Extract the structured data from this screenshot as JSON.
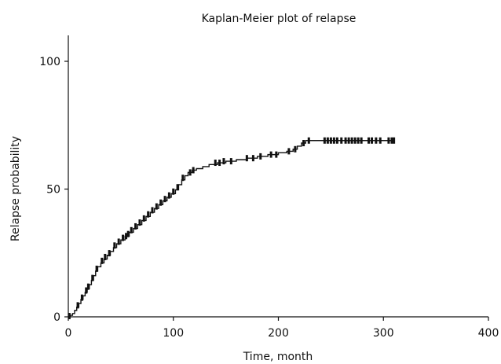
{
  "chart_data": {
    "type": "line",
    "title": "Kaplan-Meier plot of relapse",
    "xlabel": "Time, month",
    "ylabel": "Relapse probability",
    "xlim": [
      0,
      400
    ],
    "ylim": [
      0,
      110
    ],
    "x_ticks": [
      {
        "value": 0,
        "label": "0"
      },
      {
        "value": 100,
        "label": "100"
      },
      {
        "value": 200,
        "label": "200"
      },
      {
        "value": 300,
        "label": "300"
      },
      {
        "value": 400,
        "label": "400"
      }
    ],
    "y_ticks": [
      {
        "value": 0,
        "label": "0"
      },
      {
        "value": 50,
        "label": "50"
      },
      {
        "value": 100,
        "label": "100"
      }
    ],
    "grid": false,
    "legend": "none",
    "line_color": "#111111",
    "series": [
      {
        "step_curve": [
          [
            0,
            0
          ],
          [
            2,
            0.6
          ],
          [
            4,
            1.3
          ],
          [
            6,
            2.5
          ],
          [
            8,
            3.8
          ],
          [
            10,
            5.2
          ],
          [
            12,
            6.8
          ],
          [
            14,
            8.2
          ],
          [
            16,
            9.6
          ],
          [
            18,
            11.0
          ],
          [
            20,
            12.6
          ],
          [
            22,
            14.3
          ],
          [
            24,
            16.1
          ],
          [
            26,
            17.9
          ],
          [
            28,
            19.6
          ],
          [
            31,
            21.1
          ],
          [
            34,
            22.6
          ],
          [
            37,
            24.1
          ],
          [
            40,
            25.6
          ],
          [
            43,
            27.1
          ],
          [
            46,
            28.6
          ],
          [
            50,
            30.1
          ],
          [
            54,
            31.6
          ],
          [
            58,
            33.1
          ],
          [
            62,
            34.6
          ],
          [
            66,
            36.1
          ],
          [
            70,
            37.7
          ],
          [
            74,
            39.3
          ],
          [
            78,
            40.9
          ],
          [
            82,
            42.4
          ],
          [
            86,
            43.9
          ],
          [
            90,
            45.4
          ],
          [
            94,
            46.8
          ],
          [
            98,
            48.2
          ],
          [
            102,
            49.7
          ],
          [
            105,
            51.7
          ],
          [
            108,
            53.6
          ],
          [
            111,
            55.2
          ],
          [
            114,
            56.5
          ],
          [
            118,
            57.4
          ],
          [
            122,
            58.0
          ],
          [
            128,
            58.8
          ],
          [
            134,
            59.6
          ],
          [
            142,
            60.3
          ],
          [
            150,
            60.9
          ],
          [
            160,
            61.5
          ],
          [
            170,
            62.1
          ],
          [
            180,
            62.8
          ],
          [
            190,
            63.5
          ],
          [
            200,
            64.2
          ],
          [
            208,
            64.8
          ],
          [
            214,
            65.6
          ],
          [
            218,
            66.8
          ],
          [
            222,
            68.0
          ],
          [
            226,
            69.0
          ],
          [
            310,
            69.0
          ]
        ],
        "censor_marks": [
          [
            1,
            0.3
          ],
          [
            9,
            4.5
          ],
          [
            13,
            7.5
          ],
          [
            17,
            10.3
          ],
          [
            19,
            11.8
          ],
          [
            23,
            15.2
          ],
          [
            27,
            18.8
          ],
          [
            32,
            21.9
          ],
          [
            35,
            23.4
          ],
          [
            39,
            24.9
          ],
          [
            44,
            27.9
          ],
          [
            48,
            29.4
          ],
          [
            52,
            30.9
          ],
          [
            55,
            31.6
          ],
          [
            57,
            32.4
          ],
          [
            60,
            33.9
          ],
          [
            64,
            35.4
          ],
          [
            68,
            36.9
          ],
          [
            72,
            38.5
          ],
          [
            76,
            40.1
          ],
          [
            80,
            41.7
          ],
          [
            84,
            43.2
          ],
          [
            88,
            44.7
          ],
          [
            92,
            46.1
          ],
          [
            96,
            47.5
          ],
          [
            100,
            49.0
          ],
          [
            104,
            50.7
          ],
          [
            109,
            54.4
          ],
          [
            116,
            56.5
          ],
          [
            119,
            57.4
          ],
          [
            140,
            60.3
          ],
          [
            144,
            60.3
          ],
          [
            148,
            60.9
          ],
          [
            155,
            60.9
          ],
          [
            170,
            62.1
          ],
          [
            176,
            62.1
          ],
          [
            183,
            62.8
          ],
          [
            193,
            63.5
          ],
          [
            198,
            63.5
          ],
          [
            210,
            64.8
          ],
          [
            216,
            65.6
          ],
          [
            224,
            68.0
          ],
          [
            229,
            69.0
          ],
          [
            244,
            69.0
          ],
          [
            247,
            69.0
          ],
          [
            250,
            69.0
          ],
          [
            253,
            69.0
          ],
          [
            256,
            69.0
          ],
          [
            260,
            69.0
          ],
          [
            264,
            69.0
          ],
          [
            267,
            69.0
          ],
          [
            270,
            69.0
          ],
          [
            273,
            69.0
          ],
          [
            276,
            69.0
          ],
          [
            279,
            69.0
          ],
          [
            286,
            69.0
          ],
          [
            289,
            69.0
          ],
          [
            293,
            69.0
          ],
          [
            297,
            69.0
          ],
          [
            305,
            69.0
          ],
          [
            308,
            69.0
          ],
          [
            310,
            69.0
          ]
        ]
      }
    ]
  }
}
